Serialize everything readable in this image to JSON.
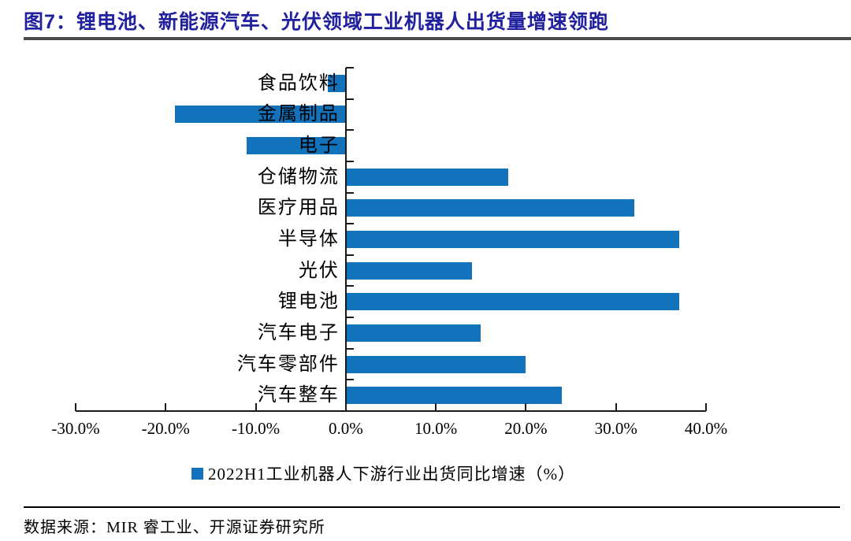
{
  "header": {
    "title": "图7：锂电池、新能源汽车、光伏领域工业机器人出货量增速领跑"
  },
  "legend": {
    "label": "2022H1工业机器人下游行业出货同比增速（%）"
  },
  "footer": {
    "source": "数据来源：MIR 睿工业、开源证券研究所"
  },
  "colors": {
    "bar": "#1372bc",
    "title_text": "#21219f",
    "title_rule": "#4a4a4a",
    "axis": "#1a1a1a"
  },
  "chart_data": {
    "type": "bar",
    "orientation": "horizontal",
    "title": "2022H1工业机器人下游行业出货同比增速（%）",
    "categories": [
      "食品饮料",
      "金属制品",
      "电子",
      "仓储物流",
      "医疗用品",
      "半导体",
      "光伏",
      "锂电池",
      "汽车电子",
      "汽车零部件",
      "汽车整车"
    ],
    "values": [
      -2,
      -19,
      -11,
      18,
      32,
      37,
      14,
      37,
      15,
      20,
      24
    ],
    "unit": "%",
    "xlim": [
      -30,
      40
    ],
    "x_tick_step": 10,
    "x_tick_labels": [
      "-30.0%",
      "-20.0%",
      "-10.0%",
      "0.0%",
      "10.0%",
      "20.0%",
      "30.0%",
      "40.0%"
    ],
    "grid": false,
    "legend_position": "bottom",
    "bar_color": "#1372bc"
  }
}
